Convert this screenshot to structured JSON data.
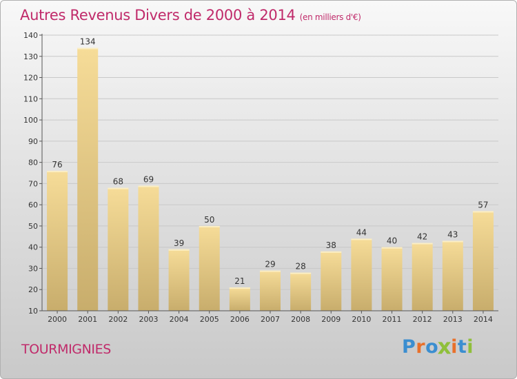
{
  "header": {
    "title": "Autres Revenus Divers de 2000 à 2014",
    "subtitle": "(en milliers d'€)"
  },
  "footer": {
    "commune": "TOURMIGNIES",
    "brand": "Proxiti"
  },
  "colors": {
    "accent": "#c02a6a",
    "bar_top": "#f6dc98",
    "bar_bottom": "#c8ad6c",
    "grid": "#c8c8c8",
    "brand_letters": [
      "#3b8ed0",
      "#e8702a",
      "#3b8ed0",
      "#8fbf3a",
      "#e8702a",
      "#3b8ed0",
      "#8fbf3a"
    ]
  },
  "chart_data": {
    "type": "bar",
    "title": "Autres Revenus Divers de 2000 à 2014",
    "subtitle": "(en milliers d'€)",
    "categories": [
      "2000",
      "2001",
      "2002",
      "2003",
      "2004",
      "2005",
      "2006",
      "2007",
      "2008",
      "2009",
      "2010",
      "2011",
      "2012",
      "2013",
      "2014"
    ],
    "values": [
      76,
      134,
      68,
      69,
      39,
      50,
      21,
      29,
      28,
      38,
      44,
      40,
      42,
      43,
      57
    ],
    "ylim": [
      10,
      140
    ],
    "yticks": [
      10,
      20,
      30,
      40,
      50,
      60,
      70,
      80,
      90,
      100,
      110,
      120,
      130,
      140
    ],
    "grid": true,
    "legend": "none"
  }
}
